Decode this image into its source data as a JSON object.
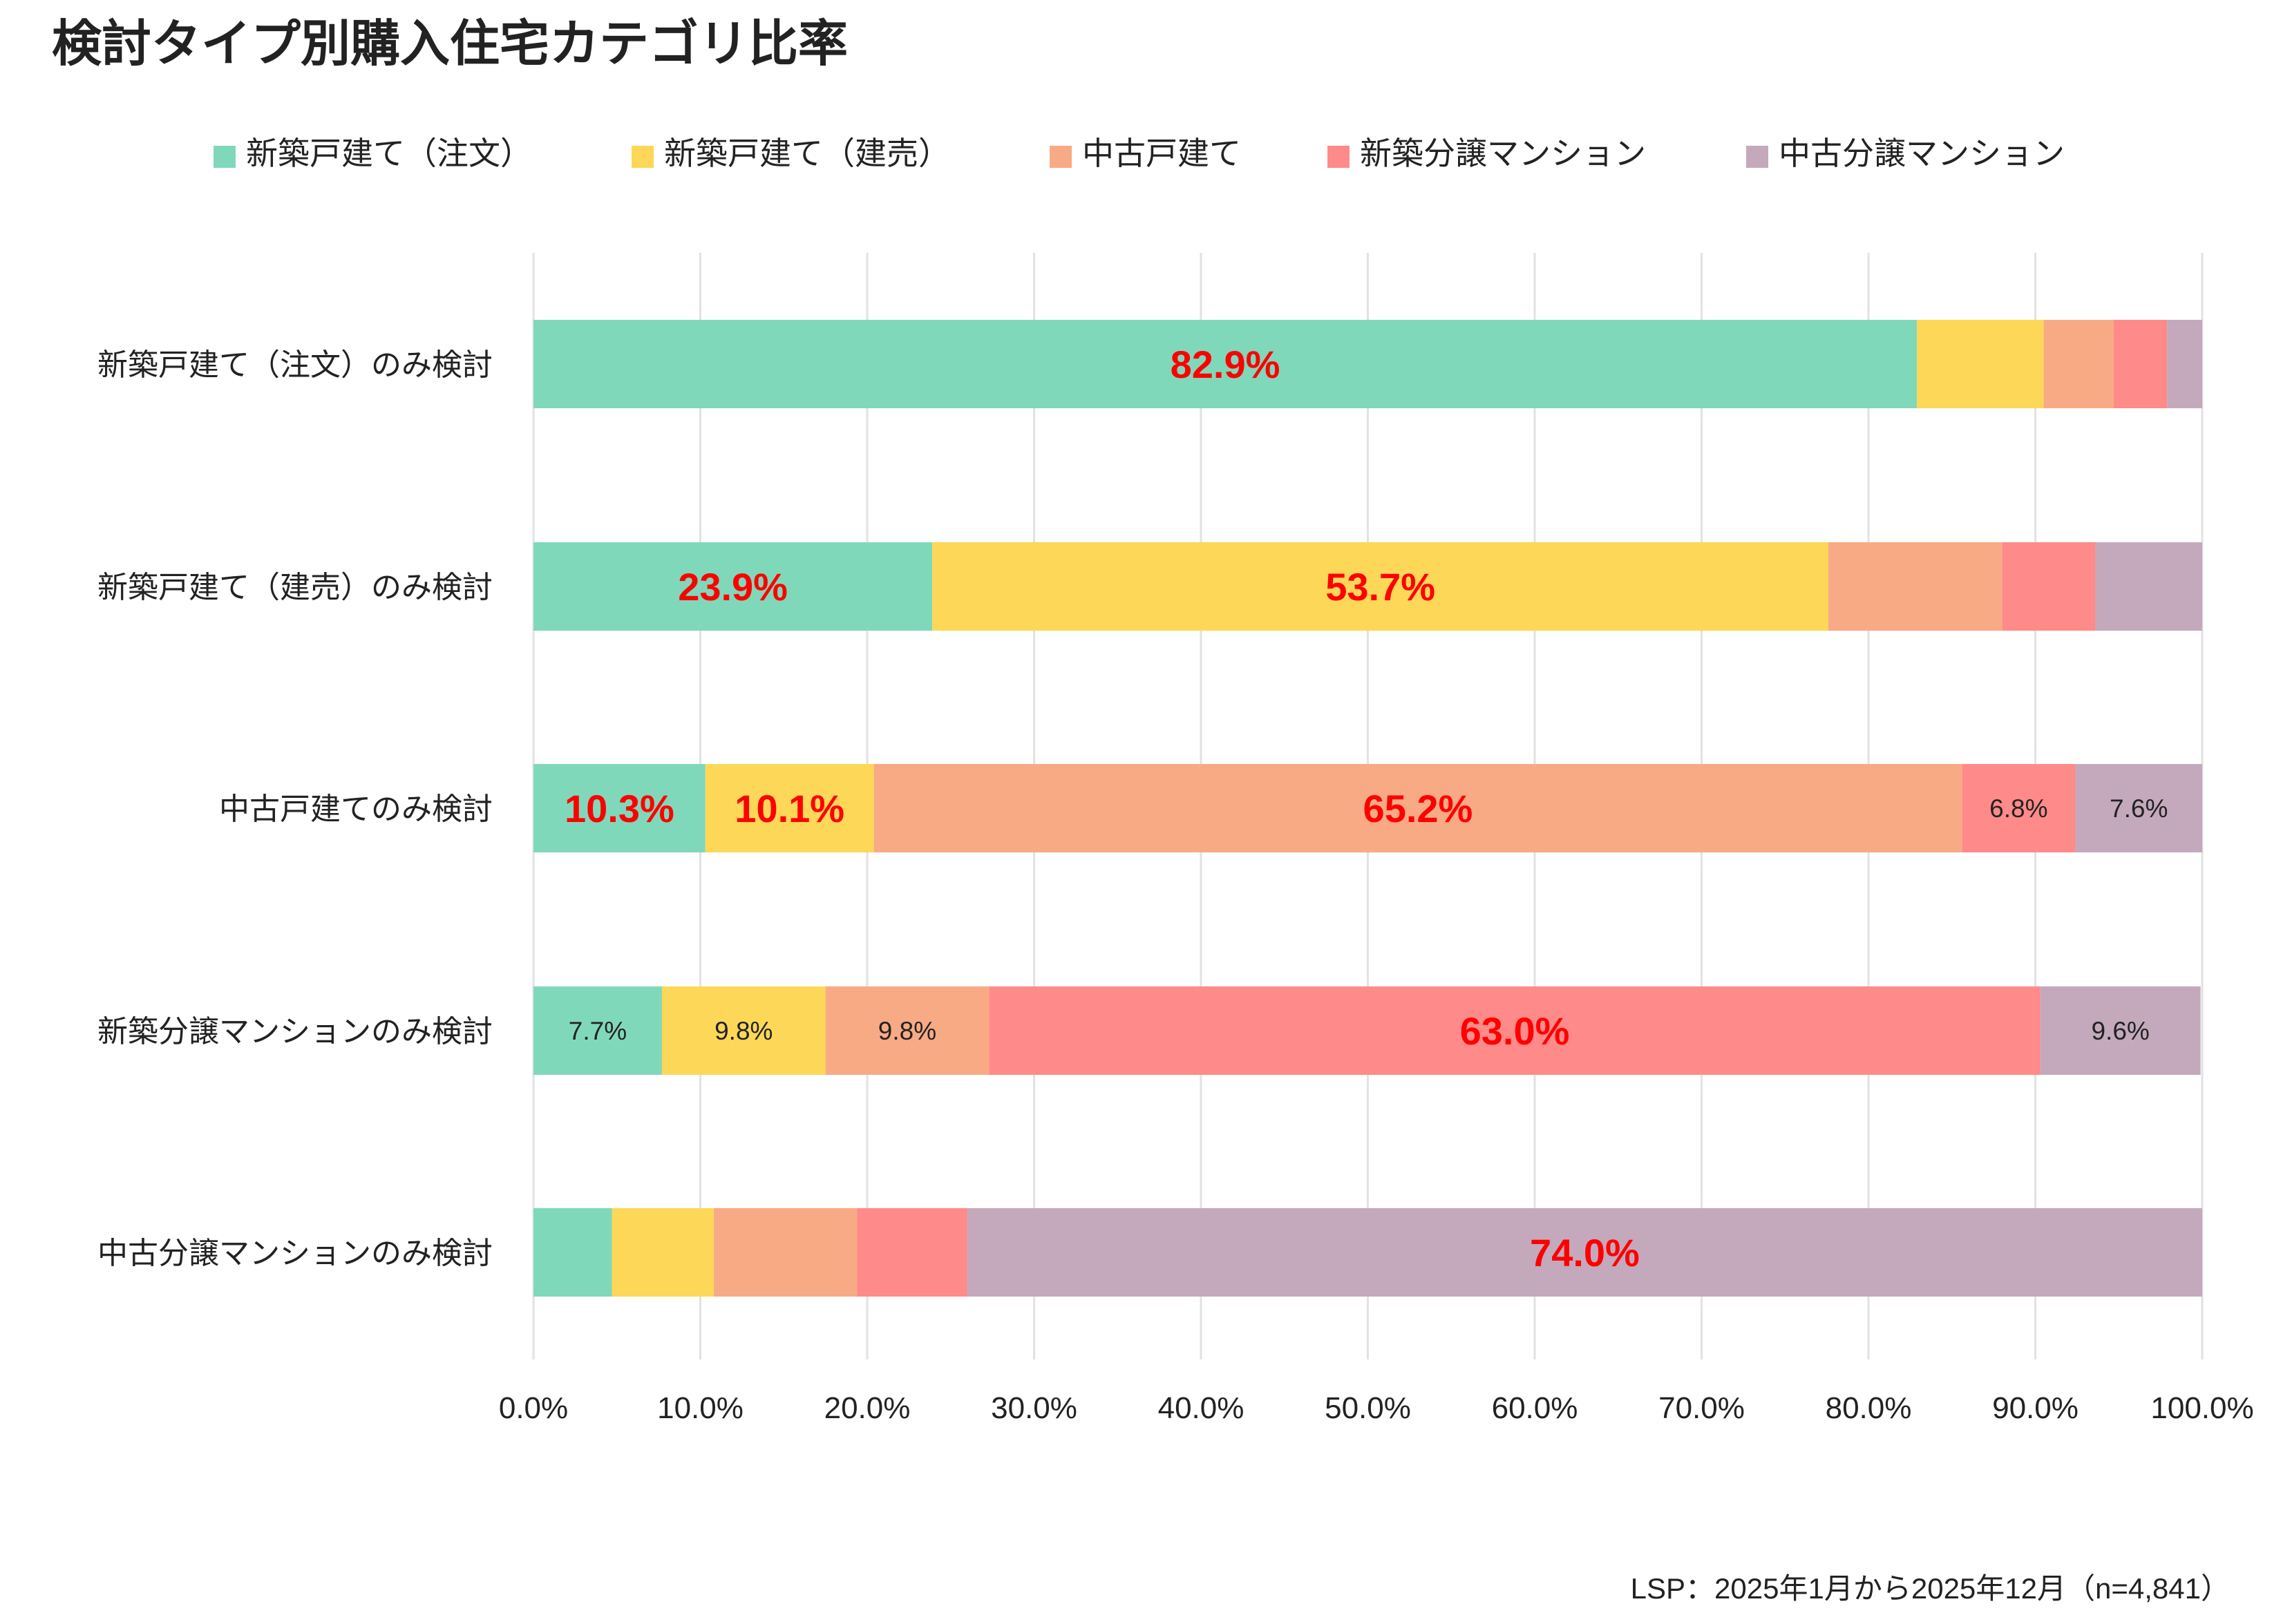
{
  "chart_data": {
    "type": "bar",
    "orientation": "horizontal",
    "stacked": true,
    "title": "検討タイプ別購入住宅カテゴリ比率",
    "categories": [
      "新築戸建て（注文）のみ検討",
      "新築戸建て（建売）のみ検討",
      "中古戸建てのみ検討",
      "新築分譲マンションのみ検討",
      "中古分譲マンションのみ検討"
    ],
    "series": [
      {
        "name": "新築戸建て（注文）",
        "color": "#80d8ba",
        "values": [
          82.9,
          23.9,
          10.3,
          7.7,
          4.7
        ],
        "labels": [
          "82.9%",
          "23.9%",
          "10.3%",
          "7.7%",
          null
        ],
        "label_style": [
          "big",
          "big",
          "big",
          "small",
          null
        ]
      },
      {
        "name": "新築戸建て（建売）",
        "color": "#fdd757",
        "values": [
          7.6,
          53.7,
          10.1,
          9.8,
          6.1
        ],
        "labels": [
          null,
          "53.7%",
          "10.1%",
          "9.8%",
          null
        ],
        "label_style": [
          null,
          "big",
          "big",
          "small",
          null
        ]
      },
      {
        "name": "中古戸建て",
        "color": "#f8aa85",
        "values": [
          4.2,
          10.4,
          65.2,
          9.8,
          8.6
        ],
        "labels": [
          null,
          null,
          "65.2%",
          "9.8%",
          null
        ],
        "label_style": [
          null,
          null,
          "big",
          "small",
          null
        ]
      },
      {
        "name": "新築分譲マンション",
        "color": "#ff8a8a",
        "values": [
          3.2,
          5.6,
          6.8,
          63.0,
          6.6
        ],
        "labels": [
          null,
          null,
          "6.8%",
          "63.0%",
          null
        ],
        "label_style": [
          null,
          null,
          "small",
          "big",
          null
        ]
      },
      {
        "name": "中古分譲マンション",
        "color": "#c4a9bc",
        "values": [
          2.1,
          6.4,
          7.6,
          9.6,
          74.0
        ],
        "labels": [
          null,
          null,
          "7.6%",
          "9.6%",
          "74.0%"
        ],
        "label_style": [
          null,
          null,
          "small",
          "small",
          "big"
        ]
      }
    ],
    "xlim": [
      0,
      100
    ],
    "xticks": [
      "0.0%",
      "10.0%",
      "20.0%",
      "30.0%",
      "40.0%",
      "50.0%",
      "60.0%",
      "70.0%",
      "80.0%",
      "90.0%",
      "100.0%"
    ],
    "xlabel": "",
    "ylabel": "",
    "grid": "vertical",
    "legend": "top",
    "highlight_label_color": "#ff0000",
    "footnote": "LSP：2025年1月から2025年12月（n=4,841）"
  }
}
